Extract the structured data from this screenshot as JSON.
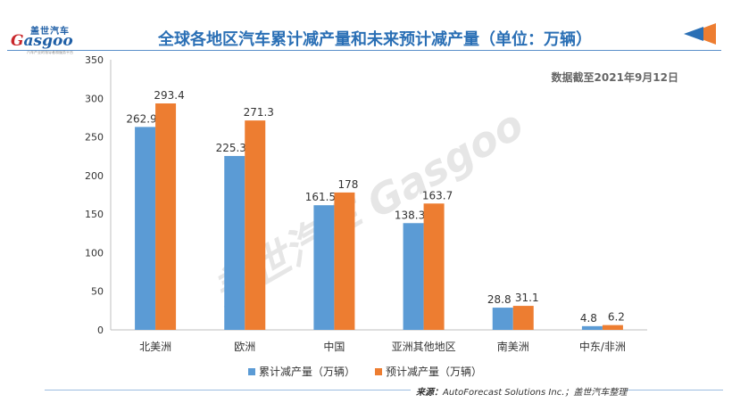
{
  "logo": {
    "cn": "盖世汽车",
    "en_prefix": "G",
    "en_rest": "asgoo",
    "tagline": "汽车产业的领导者和服务平台"
  },
  "title": "全球各地区汽车累计减产量和未来预计减产量（单位：万辆）",
  "note": "数据截至2021年9月12日",
  "source": {
    "label": "来源：",
    "text": "AutoForecast Solutions Inc.；盖世汽车整理"
  },
  "watermark": "盖世汽车 Gasgoo",
  "colors": {
    "accent": "#2a6fb5",
    "series1": "#5b9bd5",
    "series2": "#ed7d31"
  },
  "chart_data": {
    "type": "bar",
    "title": "全球各地区汽车累计减产量和未来预计减产量（单位：万辆）",
    "categories": [
      "北美洲",
      "欧洲",
      "中国",
      "亚洲其他地区",
      "南美洲",
      "中东/非洲"
    ],
    "series": [
      {
        "name": "累计减产量（万辆）",
        "values": [
          262.9,
          225.3,
          161.5,
          138.3,
          28.8,
          4.8
        ],
        "labels": [
          "262.9",
          "225.3",
          "161.5",
          "138.3",
          "28.8",
          "4.8"
        ]
      },
      {
        "name": "预计减产量（万辆）",
        "values": [
          293.4,
          271.3,
          178,
          163.7,
          31.1,
          6.2
        ],
        "labels": [
          "293.4",
          "271.3",
          "178",
          "163.7",
          "31.1",
          "6.2"
        ]
      }
    ],
    "ylim": [
      0,
      350
    ],
    "yticks": [
      "0",
      "50",
      "100",
      "150",
      "200",
      "250",
      "300",
      "350"
    ],
    "grid": false,
    "legend": "bottom"
  }
}
